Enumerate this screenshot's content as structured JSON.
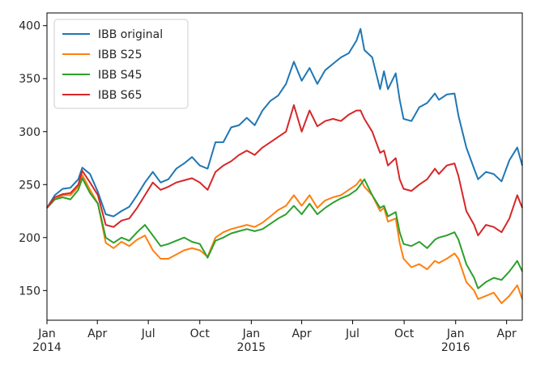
{
  "chart_data": {
    "type": "line",
    "title": "",
    "xlabel": "",
    "ylabel": "",
    "x_tick_labels": [
      {
        "date": "2014-01-01",
        "label": "Jan",
        "year": "2014"
      },
      {
        "date": "2014-04-01",
        "label": "Apr",
        "year": ""
      },
      {
        "date": "2014-07-01",
        "label": "Jul",
        "year": ""
      },
      {
        "date": "2014-10-01",
        "label": "Oct",
        "year": ""
      },
      {
        "date": "2015-01-01",
        "label": "Jan",
        "year": "2015"
      },
      {
        "date": "2015-04-01",
        "label": "Apr",
        "year": ""
      },
      {
        "date": "2015-07-01",
        "label": "Jul",
        "year": ""
      },
      {
        "date": "2015-10-01",
        "label": "Oct",
        "year": ""
      },
      {
        "date": "2016-01-01",
        "label": "Jan",
        "year": "2016"
      },
      {
        "date": "2016-04-01",
        "label": "Apr",
        "year": ""
      }
    ],
    "xlim": [
      "2014-01-01",
      "2016-04-29"
    ],
    "y_ticks": [
      150,
      200,
      250,
      300,
      350,
      400
    ],
    "ylim": [
      122,
      412
    ],
    "grid": false,
    "legend_position": "top-left",
    "series": [
      {
        "name": "IBB original",
        "color": "#1f77b4",
        "points": [
          [
            "2014-01-01",
            228
          ],
          [
            "2014-01-15",
            240
          ],
          [
            "2014-01-29",
            246
          ],
          [
            "2014-02-12",
            247
          ],
          [
            "2014-02-26",
            255
          ],
          [
            "2014-03-05",
            266
          ],
          [
            "2014-03-19",
            260
          ],
          [
            "2014-04-02",
            243
          ],
          [
            "2014-04-16",
            222
          ],
          [
            "2014-04-30",
            220
          ],
          [
            "2014-05-14",
            225
          ],
          [
            "2014-05-28",
            229
          ],
          [
            "2014-06-11",
            240
          ],
          [
            "2014-06-25",
            252
          ],
          [
            "2014-07-09",
            262
          ],
          [
            "2014-07-23",
            252
          ],
          [
            "2014-08-06",
            255
          ],
          [
            "2014-08-20",
            265
          ],
          [
            "2014-09-03",
            270
          ],
          [
            "2014-09-17",
            276
          ],
          [
            "2014-10-01",
            268
          ],
          [
            "2014-10-15",
            265
          ],
          [
            "2014-10-29",
            290
          ],
          [
            "2014-11-12",
            290
          ],
          [
            "2014-11-26",
            304
          ],
          [
            "2014-12-10",
            306
          ],
          [
            "2014-12-24",
            313
          ],
          [
            "2015-01-07",
            306
          ],
          [
            "2015-01-21",
            320
          ],
          [
            "2015-02-04",
            329
          ],
          [
            "2015-02-18",
            334
          ],
          [
            "2015-03-04",
            345
          ],
          [
            "2015-03-18",
            366
          ],
          [
            "2015-04-01",
            348
          ],
          [
            "2015-04-15",
            360
          ],
          [
            "2015-04-29",
            345
          ],
          [
            "2015-05-13",
            358
          ],
          [
            "2015-05-27",
            364
          ],
          [
            "2015-06-10",
            370
          ],
          [
            "2015-06-24",
            374
          ],
          [
            "2015-07-08",
            386
          ],
          [
            "2015-07-15",
            397
          ],
          [
            "2015-07-22",
            377
          ],
          [
            "2015-08-05",
            370
          ],
          [
            "2015-08-19",
            340
          ],
          [
            "2015-08-26",
            357
          ],
          [
            "2015-09-02",
            340
          ],
          [
            "2015-09-16",
            355
          ],
          [
            "2015-09-23",
            330
          ],
          [
            "2015-09-30",
            312
          ],
          [
            "2015-10-14",
            310
          ],
          [
            "2015-10-28",
            323
          ],
          [
            "2015-11-11",
            327
          ],
          [
            "2015-11-25",
            336
          ],
          [
            "2015-12-02",
            330
          ],
          [
            "2015-12-16",
            335
          ],
          [
            "2015-12-30",
            336
          ],
          [
            "2016-01-06",
            315
          ],
          [
            "2016-01-20",
            285
          ],
          [
            "2016-02-03",
            265
          ],
          [
            "2016-02-10",
            255
          ],
          [
            "2016-02-24",
            262
          ],
          [
            "2016-03-09",
            260
          ],
          [
            "2016-03-23",
            253
          ],
          [
            "2016-04-06",
            273
          ],
          [
            "2016-04-20",
            285
          ],
          [
            "2016-04-29",
            268
          ]
        ]
      },
      {
        "name": "IBB S25",
        "color": "#ff7f0e",
        "points": [
          [
            "2014-01-01",
            228
          ],
          [
            "2014-01-15",
            236
          ],
          [
            "2014-01-29",
            240
          ],
          [
            "2014-02-12",
            240
          ],
          [
            "2014-02-26",
            248
          ],
          [
            "2014-03-05",
            259
          ],
          [
            "2014-03-19",
            245
          ],
          [
            "2014-04-02",
            232
          ],
          [
            "2014-04-16",
            195
          ],
          [
            "2014-04-30",
            190
          ],
          [
            "2014-05-14",
            196
          ],
          [
            "2014-05-28",
            192
          ],
          [
            "2014-06-11",
            198
          ],
          [
            "2014-06-25",
            202
          ],
          [
            "2014-07-09",
            188
          ],
          [
            "2014-07-23",
            180
          ],
          [
            "2014-08-06",
            180
          ],
          [
            "2014-08-20",
            184
          ],
          [
            "2014-09-03",
            188
          ],
          [
            "2014-09-17",
            190
          ],
          [
            "2014-10-01",
            188
          ],
          [
            "2014-10-15",
            182
          ],
          [
            "2014-10-29",
            200
          ],
          [
            "2014-11-12",
            205
          ],
          [
            "2014-11-26",
            208
          ],
          [
            "2014-12-10",
            210
          ],
          [
            "2014-12-24",
            212
          ],
          [
            "2015-01-07",
            210
          ],
          [
            "2015-01-21",
            214
          ],
          [
            "2015-02-04",
            220
          ],
          [
            "2015-02-18",
            226
          ],
          [
            "2015-03-04",
            230
          ],
          [
            "2015-03-18",
            240
          ],
          [
            "2015-04-01",
            230
          ],
          [
            "2015-04-15",
            240
          ],
          [
            "2015-04-29",
            228
          ],
          [
            "2015-05-13",
            235
          ],
          [
            "2015-05-27",
            238
          ],
          [
            "2015-06-10",
            240
          ],
          [
            "2015-06-24",
            245
          ],
          [
            "2015-07-08",
            250
          ],
          [
            "2015-07-15",
            255
          ],
          [
            "2015-07-22",
            248
          ],
          [
            "2015-08-05",
            240
          ],
          [
            "2015-08-19",
            225
          ],
          [
            "2015-08-26",
            228
          ],
          [
            "2015-09-02",
            215
          ],
          [
            "2015-09-16",
            218
          ],
          [
            "2015-09-23",
            195
          ],
          [
            "2015-09-30",
            180
          ],
          [
            "2015-10-14",
            172
          ],
          [
            "2015-10-28",
            175
          ],
          [
            "2015-11-11",
            170
          ],
          [
            "2015-11-25",
            178
          ],
          [
            "2015-12-02",
            176
          ],
          [
            "2015-12-16",
            180
          ],
          [
            "2015-12-30",
            185
          ],
          [
            "2016-01-06",
            180
          ],
          [
            "2016-01-20",
            158
          ],
          [
            "2016-02-03",
            150
          ],
          [
            "2016-02-10",
            142
          ],
          [
            "2016-02-24",
            145
          ],
          [
            "2016-03-09",
            148
          ],
          [
            "2016-03-23",
            138
          ],
          [
            "2016-04-06",
            145
          ],
          [
            "2016-04-20",
            155
          ],
          [
            "2016-04-29",
            142
          ]
        ]
      },
      {
        "name": "IBB S45",
        "color": "#2ca02c",
        "points": [
          [
            "2014-01-01",
            228
          ],
          [
            "2014-01-15",
            236
          ],
          [
            "2014-01-29",
            238
          ],
          [
            "2014-02-12",
            236
          ],
          [
            "2014-02-26",
            245
          ],
          [
            "2014-03-05",
            256
          ],
          [
            "2014-03-19",
            242
          ],
          [
            "2014-04-02",
            232
          ],
          [
            "2014-04-16",
            200
          ],
          [
            "2014-04-30",
            195
          ],
          [
            "2014-05-14",
            200
          ],
          [
            "2014-05-28",
            197
          ],
          [
            "2014-06-11",
            205
          ],
          [
            "2014-06-25",
            212
          ],
          [
            "2014-07-09",
            202
          ],
          [
            "2014-07-23",
            192
          ],
          [
            "2014-08-06",
            194
          ],
          [
            "2014-08-20",
            197
          ],
          [
            "2014-09-03",
            200
          ],
          [
            "2014-09-17",
            196
          ],
          [
            "2014-10-01",
            194
          ],
          [
            "2014-10-15",
            181
          ],
          [
            "2014-10-29",
            197
          ],
          [
            "2014-11-12",
            200
          ],
          [
            "2014-11-26",
            204
          ],
          [
            "2014-12-10",
            206
          ],
          [
            "2014-12-24",
            208
          ],
          [
            "2015-01-07",
            206
          ],
          [
            "2015-01-21",
            208
          ],
          [
            "2015-02-04",
            213
          ],
          [
            "2015-02-18",
            218
          ],
          [
            "2015-03-04",
            222
          ],
          [
            "2015-03-18",
            230
          ],
          [
            "2015-04-01",
            222
          ],
          [
            "2015-04-15",
            232
          ],
          [
            "2015-04-29",
            222
          ],
          [
            "2015-05-13",
            228
          ],
          [
            "2015-05-27",
            233
          ],
          [
            "2015-06-10",
            237
          ],
          [
            "2015-06-24",
            240
          ],
          [
            "2015-07-08",
            245
          ],
          [
            "2015-07-15",
            250
          ],
          [
            "2015-07-22",
            255
          ],
          [
            "2015-08-05",
            240
          ],
          [
            "2015-08-19",
            228
          ],
          [
            "2015-08-26",
            230
          ],
          [
            "2015-09-02",
            220
          ],
          [
            "2015-09-16",
            224
          ],
          [
            "2015-09-23",
            205
          ],
          [
            "2015-09-30",
            194
          ],
          [
            "2015-10-14",
            192
          ],
          [
            "2015-10-28",
            196
          ],
          [
            "2015-11-11",
            190
          ],
          [
            "2015-11-25",
            198
          ],
          [
            "2015-12-02",
            200
          ],
          [
            "2015-12-16",
            202
          ],
          [
            "2015-12-30",
            205
          ],
          [
            "2016-01-06",
            198
          ],
          [
            "2016-01-20",
            175
          ],
          [
            "2016-02-03",
            162
          ],
          [
            "2016-02-10",
            152
          ],
          [
            "2016-02-24",
            158
          ],
          [
            "2016-03-09",
            162
          ],
          [
            "2016-03-23",
            160
          ],
          [
            "2016-04-06",
            168
          ],
          [
            "2016-04-20",
            178
          ],
          [
            "2016-04-29",
            168
          ]
        ]
      },
      {
        "name": "IBB S65",
        "color": "#d62728",
        "points": [
          [
            "2014-01-01",
            228
          ],
          [
            "2014-01-15",
            238
          ],
          [
            "2014-01-29",
            241
          ],
          [
            "2014-02-12",
            242
          ],
          [
            "2014-02-26",
            250
          ],
          [
            "2014-03-05",
            263
          ],
          [
            "2014-03-19",
            252
          ],
          [
            "2014-04-02",
            240
          ],
          [
            "2014-04-16",
            212
          ],
          [
            "2014-04-30",
            210
          ],
          [
            "2014-05-14",
            216
          ],
          [
            "2014-05-28",
            218
          ],
          [
            "2014-06-11",
            228
          ],
          [
            "2014-06-25",
            240
          ],
          [
            "2014-07-09",
            252
          ],
          [
            "2014-07-23",
            245
          ],
          [
            "2014-08-06",
            248
          ],
          [
            "2014-08-20",
            252
          ],
          [
            "2014-09-03",
            254
          ],
          [
            "2014-09-17",
            256
          ],
          [
            "2014-10-01",
            252
          ],
          [
            "2014-10-15",
            245
          ],
          [
            "2014-10-29",
            262
          ],
          [
            "2014-11-12",
            268
          ],
          [
            "2014-11-26",
            272
          ],
          [
            "2014-12-10",
            278
          ],
          [
            "2014-12-24",
            282
          ],
          [
            "2015-01-07",
            278
          ],
          [
            "2015-01-21",
            285
          ],
          [
            "2015-02-04",
            290
          ],
          [
            "2015-02-18",
            295
          ],
          [
            "2015-03-04",
            300
          ],
          [
            "2015-03-18",
            325
          ],
          [
            "2015-04-01",
            300
          ],
          [
            "2015-04-15",
            320
          ],
          [
            "2015-04-29",
            305
          ],
          [
            "2015-05-13",
            310
          ],
          [
            "2015-05-27",
            312
          ],
          [
            "2015-06-10",
            310
          ],
          [
            "2015-06-24",
            316
          ],
          [
            "2015-07-08",
            320
          ],
          [
            "2015-07-15",
            320
          ],
          [
            "2015-07-22",
            312
          ],
          [
            "2015-08-05",
            300
          ],
          [
            "2015-08-19",
            280
          ],
          [
            "2015-08-26",
            282
          ],
          [
            "2015-09-02",
            268
          ],
          [
            "2015-09-16",
            275
          ],
          [
            "2015-09-23",
            255
          ],
          [
            "2015-09-30",
            246
          ],
          [
            "2015-10-14",
            244
          ],
          [
            "2015-10-28",
            250
          ],
          [
            "2015-11-11",
            255
          ],
          [
            "2015-11-25",
            265
          ],
          [
            "2015-12-02",
            260
          ],
          [
            "2015-12-16",
            268
          ],
          [
            "2015-12-30",
            270
          ],
          [
            "2016-01-06",
            258
          ],
          [
            "2016-01-20",
            225
          ],
          [
            "2016-02-03",
            212
          ],
          [
            "2016-02-10",
            202
          ],
          [
            "2016-02-24",
            212
          ],
          [
            "2016-03-09",
            210
          ],
          [
            "2016-03-23",
            205
          ],
          [
            "2016-04-06",
            218
          ],
          [
            "2016-04-20",
            240
          ],
          [
            "2016-04-29",
            228
          ]
        ]
      }
    ]
  }
}
